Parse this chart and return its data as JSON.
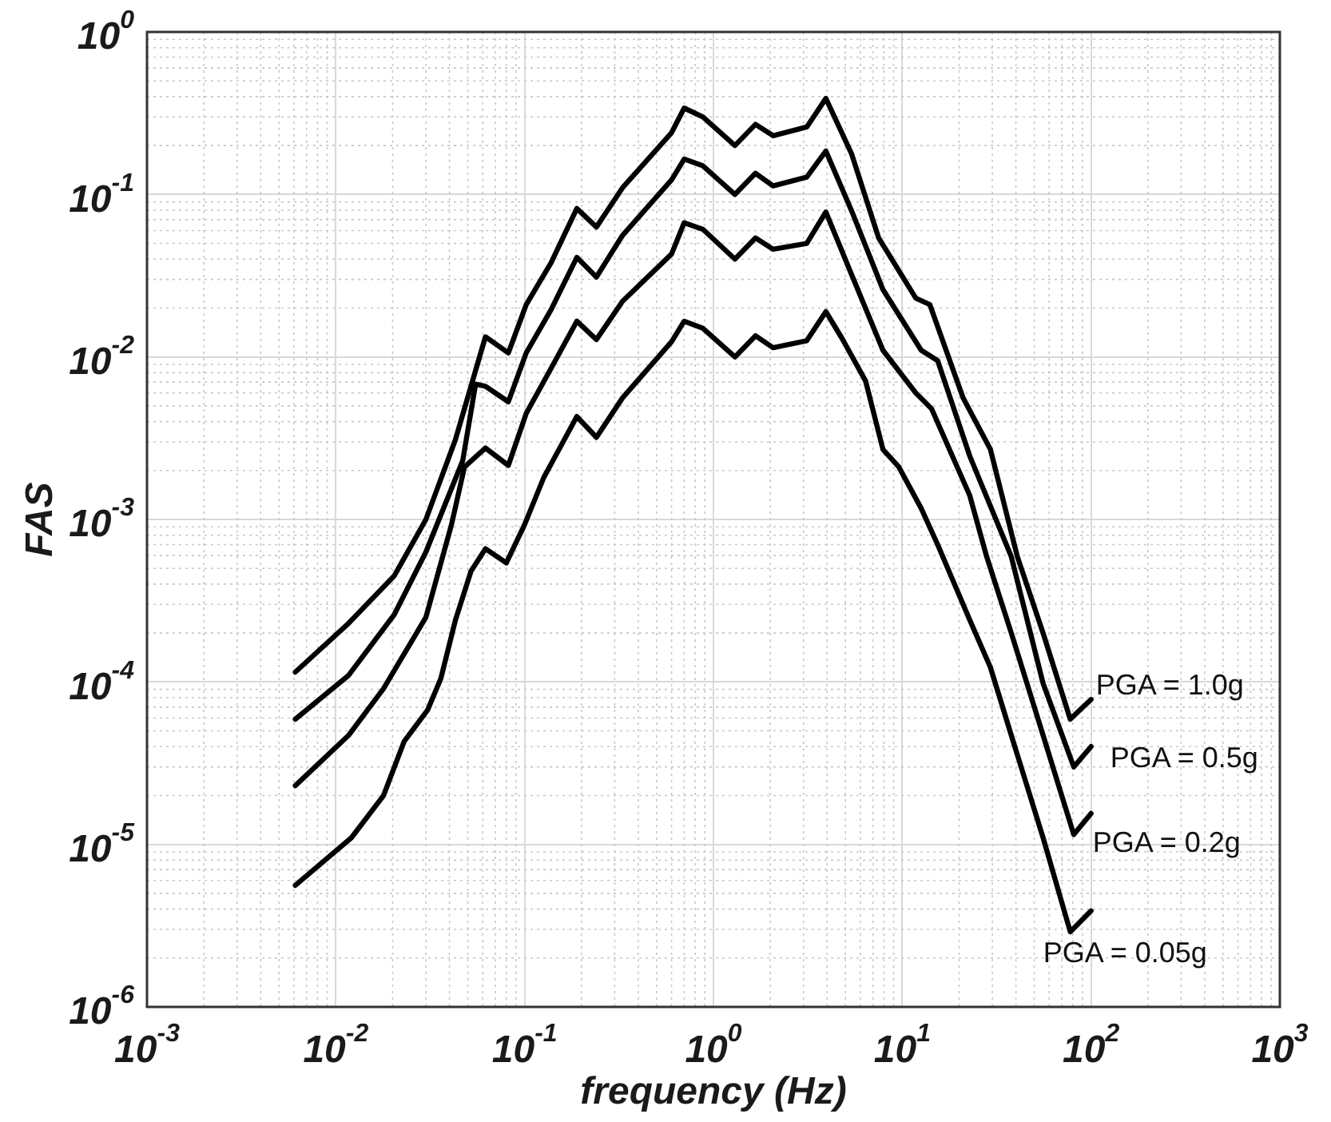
{
  "chart_data": {
    "type": "line",
    "xlabel": "frequency (Hz)",
    "ylabel": "FAS",
    "log": "xy",
    "grid": true,
    "legend": false,
    "marker": "none",
    "line_style": "solid",
    "xlim": [
      0.001,
      1000
    ],
    "xticks": [
      {
        "value": 0.001,
        "label": "10$^{-3}$"
      },
      {
        "value": 0.01,
        "label": "10$^{-2}$"
      },
      {
        "value": 0.1,
        "label": "10$^{-1}$"
      },
      {
        "value": 1,
        "label": "10$^{0}$"
      },
      {
        "value": 10,
        "label": "10$^{1}$"
      },
      {
        "value": 100,
        "label": "10$^{2}$"
      },
      {
        "value": 1000,
        "label": "10$^{3}$"
      }
    ],
    "ylim": [
      1e-06,
      1
    ],
    "yticks": [
      {
        "value": 1e-06,
        "label": "10$^{-6}$"
      },
      {
        "value": 1e-05,
        "label": "10$^{-5}$"
      },
      {
        "value": 0.0001,
        "label": "10$^{-4}$"
      },
      {
        "value": 0.001,
        "label": "10$^{-3}$"
      },
      {
        "value": 0.01,
        "label": "10$^{-2}$"
      },
      {
        "value": 0.1,
        "label": "10$^{-1}$"
      },
      {
        "value": 1,
        "label": "10$^{0}$"
      }
    ],
    "series": [
      {
        "color": "#000000",
        "x": [
          0.0061,
          0.0117,
          0.0204,
          0.03,
          0.043,
          0.062,
          0.082,
          0.102,
          0.138,
          0.189,
          0.24,
          0.33,
          0.6,
          0.7,
          0.88,
          1.3,
          1.67,
          2.07,
          3.12,
          3.94,
          5.4,
          7.5,
          11.8,
          14,
          21,
          29.3,
          40.7,
          55.7,
          77.6,
          100
        ],
        "values": [
          0.000115,
          0.00023,
          0.00045,
          0.001,
          0.0031,
          0.0133,
          0.0106,
          0.021,
          0.038,
          0.082,
          0.063,
          0.11,
          0.24,
          0.34,
          0.3,
          0.2,
          0.27,
          0.23,
          0.26,
          0.39,
          0.177,
          0.054,
          0.023,
          0.021,
          0.0056,
          0.0027,
          0.00059,
          0.0002,
          5.9e-05,
          7.8e-05
        ]
      },
      {
        "color": "#000000",
        "x": [
          0.0061,
          0.0117,
          0.0204,
          0.03,
          0.047,
          0.055,
          0.062,
          0.082,
          0.102,
          0.138,
          0.189,
          0.24,
          0.33,
          0.6,
          0.7,
          0.88,
          1.3,
          1.67,
          2.07,
          3.12,
          3.94,
          5.4,
          7.9,
          12.6,
          15.4,
          22.8,
          37.8,
          55.7,
          81,
          100
        ],
        "values": [
          5.9e-05,
          0.00011,
          0.00026,
          0.00063,
          0.0023,
          0.0068,
          0.0066,
          0.0053,
          0.0106,
          0.0195,
          0.041,
          0.031,
          0.056,
          0.123,
          0.165,
          0.15,
          0.1,
          0.135,
          0.113,
          0.128,
          0.185,
          0.079,
          0.026,
          0.011,
          0.0095,
          0.00245,
          0.00059,
          9.8e-05,
          3e-05,
          4e-05
        ]
      },
      {
        "color": "#000000",
        "x": [
          0.0061,
          0.0117,
          0.0179,
          0.03,
          0.041,
          0.048,
          0.062,
          0.082,
          0.102,
          0.138,
          0.189,
          0.24,
          0.33,
          0.6,
          0.7,
          0.88,
          1.3,
          1.67,
          2.07,
          3.12,
          3.94,
          5.4,
          7.9,
          11.8,
          14.3,
          22.8,
          28,
          37.8,
          55.7,
          81,
          100
        ],
        "values": [
          2.3e-05,
          4.7e-05,
          9.1e-05,
          0.00025,
          0.00093,
          0.0021,
          0.00275,
          0.00215,
          0.0045,
          0.0085,
          0.0166,
          0.0128,
          0.022,
          0.043,
          0.067,
          0.061,
          0.04,
          0.054,
          0.046,
          0.05,
          0.078,
          0.032,
          0.011,
          0.006,
          0.0048,
          0.0014,
          0.00059,
          0.0002,
          4.7e-05,
          1.15e-05,
          1.55e-05
        ]
      },
      {
        "color": "#000000",
        "x": [
          0.0061,
          0.0121,
          0.0179,
          0.023,
          0.0306,
          0.036,
          0.043,
          0.052,
          0.062,
          0.08,
          0.1,
          0.126,
          0.189,
          0.24,
          0.33,
          0.6,
          0.7,
          0.88,
          1.3,
          1.67,
          2.07,
          3.12,
          3.94,
          4.8,
          6.4,
          7.9,
          9.6,
          12.6,
          15.4,
          22.8,
          29.3,
          37.8,
          55.7,
          77.6,
          100
        ],
        "values": [
          5.6e-06,
          1.1e-05,
          2e-05,
          4.3e-05,
          6.7e-05,
          0.000105,
          0.00024,
          0.00048,
          0.00066,
          0.00054,
          0.00093,
          0.0018,
          0.0043,
          0.0032,
          0.0056,
          0.0124,
          0.0166,
          0.015,
          0.01,
          0.0135,
          0.0114,
          0.0126,
          0.019,
          0.013,
          0.0071,
          0.0027,
          0.0021,
          0.00117,
          0.0007,
          0.00024,
          0.000123,
          4.7e-05,
          1.1e-05,
          2.9e-06,
          3.9e-06
        ]
      }
    ],
    "annotations": [
      "PGA = 1.0g",
      "PGA = 0.5g",
      "PGA = 0.2g",
      "PGA = 0.05g"
    ]
  }
}
